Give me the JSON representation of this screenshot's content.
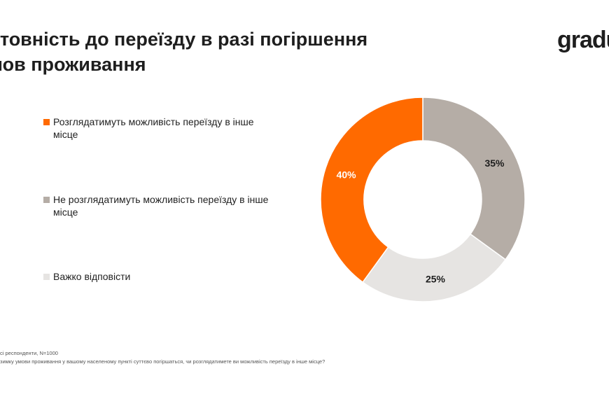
{
  "title": {
    "line1": "отовність до переїзду в разі погіршення",
    "line2": "мов проживання"
  },
  "logo": "gradu",
  "footnotes": {
    "base": "сі респонденти, N=1000",
    "question": "зимку умови проживання у вашому населеному пункті суттєво погіршаться, чи розглядатимете ви можливість переїзду в інше місце?"
  },
  "chart_data": {
    "type": "pie",
    "title": "",
    "categories": [
      "Розглядатимуть можливість переїзду в інше місце",
      "Не розглядатимуть можливість переїзду в інше місце",
      "Важко відповісти"
    ],
    "values": [
      40,
      35,
      25
    ],
    "data_labels": [
      "40%",
      "35%",
      "25%"
    ],
    "colors": [
      "#ff6a00",
      "#b5ada6",
      "#e6e4e2"
    ],
    "label_colors": [
      "#ffffff",
      "#1e1e1e",
      "#1e1e1e"
    ],
    "donut": true,
    "legend_position": "left"
  }
}
